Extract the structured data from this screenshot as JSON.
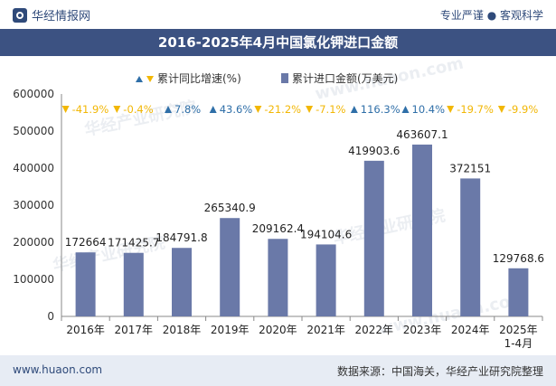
{
  "header": {
    "brand": "华经情报网",
    "tagline": "专业严谨 ● 客观科学"
  },
  "footer": {
    "website": "www.huaon.com",
    "source": "数据来源：中国海关，华经产业研究院整理"
  },
  "watermark": [
    "华经产业研究院",
    "www.huaon.com"
  ],
  "colors": {
    "bar": "#6a79a8",
    "up": "#2f6fa8",
    "down": "#f2b705",
    "title_bg": "#3c5282",
    "footer_bg": "#e7ecf4"
  },
  "chart_data": {
    "type": "bar",
    "title": "2016-2025年4月中国氯化钾进口金额",
    "categories": [
      "2016年",
      "2017年",
      "2018年",
      "2019年",
      "2020年",
      "2021年",
      "2022年",
      "2023年",
      "2024年",
      "2025年\n1-4月"
    ],
    "series": [
      {
        "name": "累计进口金额(万美元)",
        "type": "bar",
        "values": [
          172664,
          171425.7,
          184791.8,
          265340.9,
          209162.4,
          194104.6,
          419903.6,
          463607.1,
          372151,
          129768.6
        ],
        "labels": [
          "172664",
          "171425.7",
          "184791.8",
          "265340.9",
          "209162.4",
          "194104.6",
          "419903.6",
          "463607.1",
          "372151",
          "129768.6"
        ]
      },
      {
        "name": "累计同比增速(%)",
        "type": "marker",
        "values": [
          -41.9,
          -0.4,
          7.8,
          43.6,
          -21.2,
          -7.1,
          116.3,
          10.4,
          -19.7,
          -9.9
        ],
        "labels": [
          "-41.9%",
          "-0.4%",
          "7.8%",
          "43.6%",
          "-21.2%",
          "-7.1%",
          "116.3%",
          "10.4%",
          "-19.7%",
          "-9.9%"
        ]
      }
    ],
    "ylim": [
      0,
      600000
    ],
    "yticks": [
      "0",
      "100000",
      "200000",
      "300000",
      "400000",
      "500000",
      "600000"
    ],
    "legend_position": "top-center",
    "grid": false
  }
}
